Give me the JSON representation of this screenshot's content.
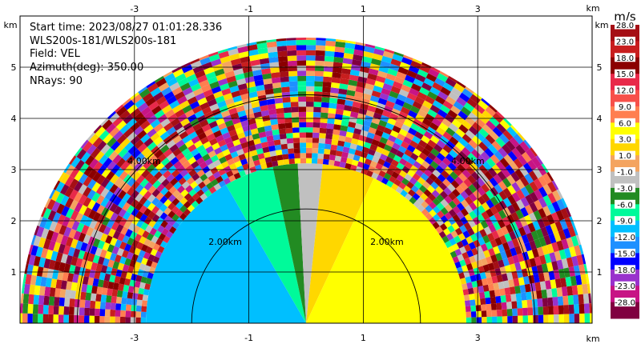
{
  "chart_data": {
    "type": "heatmap",
    "subtype": "radar-ppi-sector",
    "info": {
      "start_time": "Start time: 2023/08/27 01:01:28.336",
      "station": "WLS200s-181/WLS200s-181",
      "field": "Field: VEL",
      "azimuth": "Azimuth(deg): 350.00",
      "nrays": "NRays: 90"
    },
    "x_unit": "km",
    "y_unit": "km",
    "x_ticks": [
      -3,
      -1,
      1,
      3
    ],
    "y_ticks": [
      1,
      2,
      3,
      4,
      5
    ],
    "xlim": [
      -5.0,
      5.0
    ],
    "ylim": [
      0,
      6.0
    ],
    "range_rings_km": [
      2,
      4
    ],
    "range_ring_labels": [
      "2.00km",
      "4.00km"
    ],
    "max_range_km": 5.0,
    "azimuth_range_deg": [
      -90,
      90
    ],
    "grid": true,
    "colorbar": {
      "unit": "m/s",
      "labels": [
        "28.0",
        "23.0",
        "18.0",
        "15.0",
        "12.0",
        "9.0",
        "6.0",
        "3.0",
        "1.0",
        "-1.0",
        "-3.0",
        "-6.0",
        "-9.0",
        "-12.0",
        "-15.0",
        "-18.0",
        "-23.0",
        "-28.0"
      ],
      "colors": [
        "#a50f15",
        "#c81e1e",
        "#8b0000",
        "#e8294a",
        "#f7504a",
        "#ff7f50",
        "#ffff00",
        "#ffd700",
        "#f4a460",
        "#c0c0c0",
        "#228b22",
        "#00fa9a",
        "#00bfff",
        "#1e90ff",
        "#0000ff",
        "#9932cc",
        "#c71585",
        "#800040"
      ]
    },
    "velocity_sectors": [
      {
        "az_from": -90,
        "az_to": -30,
        "velocity": -9.0
      },
      {
        "az_from": -30,
        "az_to": -12,
        "velocity": -6.0
      },
      {
        "az_from": -12,
        "az_to": -3,
        "velocity": -3.0
      },
      {
        "az_from": -3,
        "az_to": 6,
        "velocity": -1.0
      },
      {
        "az_from": 6,
        "az_to": 25,
        "velocity": 3.0
      },
      {
        "az_from": 25,
        "az_to": 90,
        "velocity": 6.0
      }
    ],
    "coherent_max_range_km": 2.8,
    "noise_palette": [
      "#a50f15",
      "#c81e1e",
      "#8b0000",
      "#e8294a",
      "#ff7f50",
      "#ffd700",
      "#f4a460",
      "#c0c0c0",
      "#00bfff",
      "#1e90ff",
      "#0000ff",
      "#9932cc",
      "#c71585",
      "#800040",
      "#228b22",
      "#ffff00",
      "#00fa9a"
    ]
  }
}
